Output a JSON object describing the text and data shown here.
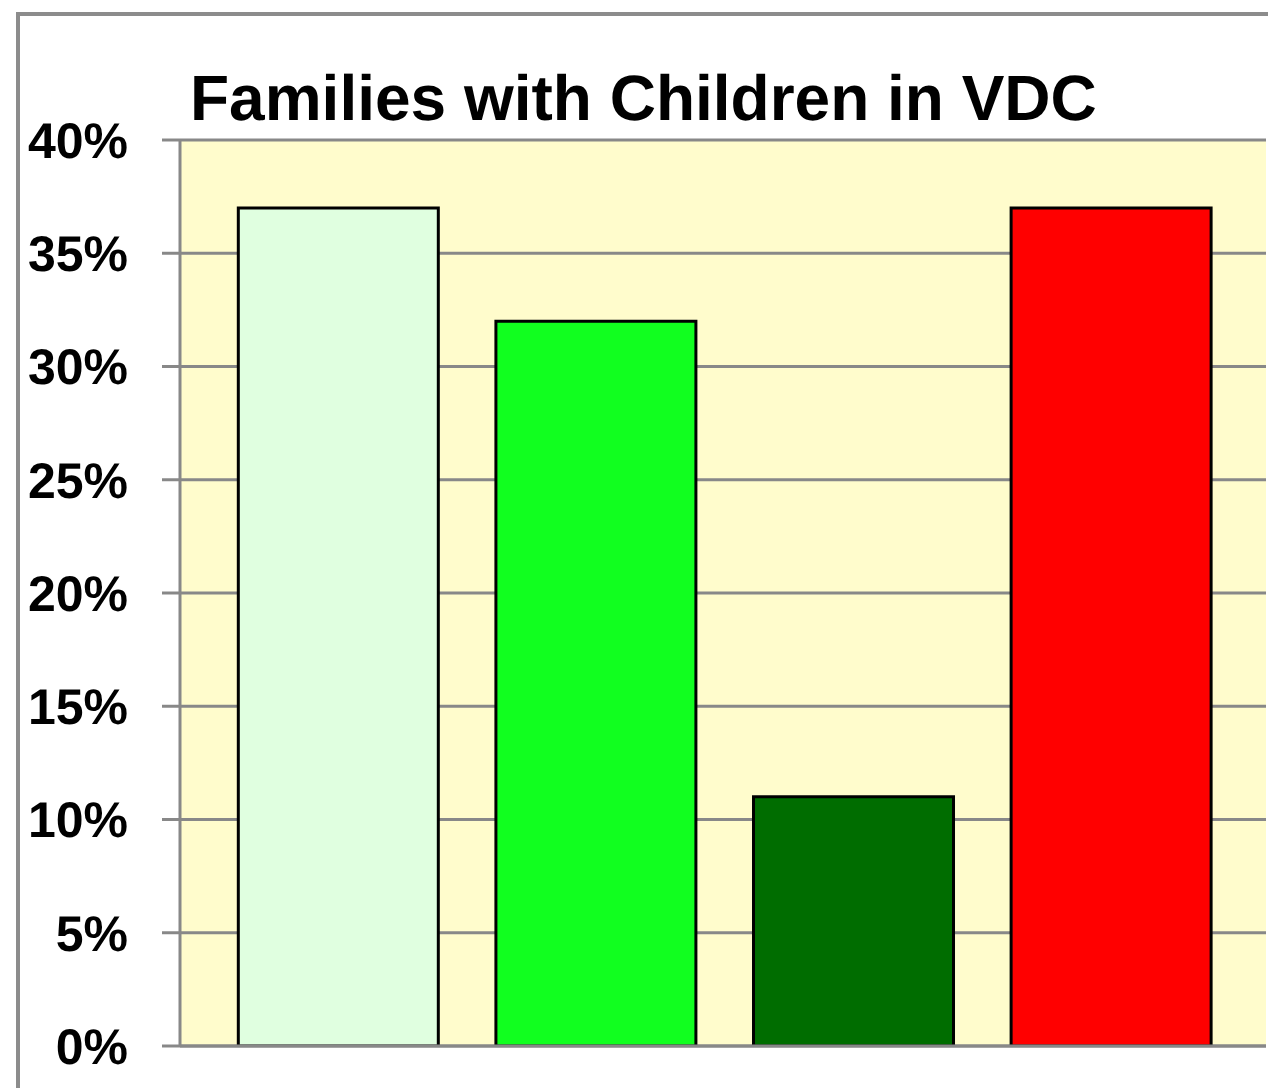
{
  "chart_data": {
    "type": "bar",
    "title": "Families with Children in VDC",
    "categories": [
      null,
      null,
      null,
      null
    ],
    "values": [
      37,
      32,
      11,
      37
    ],
    "colors": [
      "#e0ffe0",
      "#11ff1f",
      "#006d00",
      "#ff0000"
    ],
    "ylim": [
      0,
      40
    ],
    "yticks": [
      {
        "value": 0,
        "label": "0%"
      },
      {
        "value": 5,
        "label": "5%"
      },
      {
        "value": 10,
        "label": "10%"
      },
      {
        "value": 15,
        "label": "15%"
      },
      {
        "value": 20,
        "label": "20%"
      },
      {
        "value": 25,
        "label": "25%"
      },
      {
        "value": 30,
        "label": "30%"
      },
      {
        "value": 35,
        "label": "35%"
      },
      {
        "value": 40,
        "label": "40%"
      }
    ],
    "grid": "y"
  }
}
